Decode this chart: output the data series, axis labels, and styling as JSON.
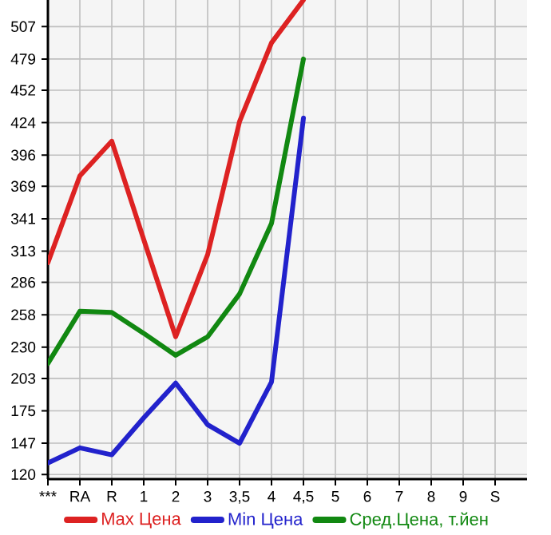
{
  "chart_data": {
    "type": "line",
    "categories": [
      "***",
      "RA",
      "R",
      "1",
      "2",
      "3",
      "3,5",
      "4",
      "4,5",
      "5",
      "6",
      "7",
      "8",
      "9",
      "S"
    ],
    "ylim": [
      116,
      530
    ],
    "yticks": [
      120,
      147,
      175,
      203,
      230,
      258,
      286,
      313,
      341,
      369,
      396,
      424,
      452,
      479,
      507
    ],
    "series": [
      {
        "name": "Max Цена",
        "color": "#dd2222",
        "values": [
          303,
          378,
          408,
          323,
          239,
          310,
          425,
          493,
          530,
          null,
          null,
          null,
          null,
          null,
          null
        ]
      },
      {
        "name": "Min Цена",
        "color": "#2222cc",
        "values": [
          130,
          143,
          137,
          169,
          199,
          163,
          147,
          200,
          428,
          null,
          null,
          null,
          null,
          null,
          null
        ]
      },
      {
        "name": "Сред.Цена, т.йен",
        "color": "#118811",
        "values": [
          216,
          261,
          260,
          242,
          223,
          239,
          276,
          337,
          479,
          null,
          null,
          null,
          null,
          null,
          null
        ]
      }
    ],
    "grid": true,
    "legend": "bottom",
    "marker": "none",
    "line_style": "solid"
  }
}
